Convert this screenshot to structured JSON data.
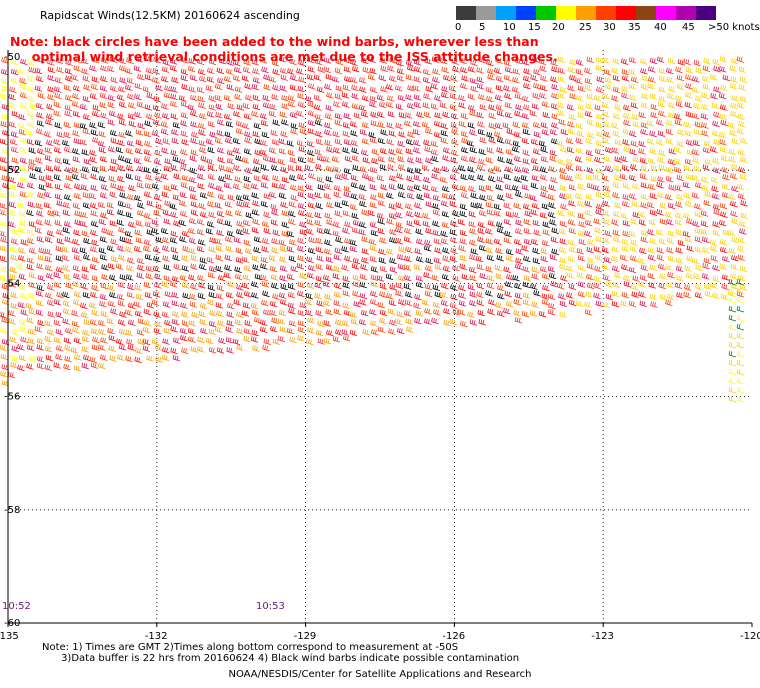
{
  "title": "Rapidscat Winds(12.5KM) 20160624 ascending",
  "note_red": [
    "Note: black circles have been added to the wind barbs, wherever less than",
    "     optimal wind retrieval conditions are met due to the ISS attitude changes."
  ],
  "colorbar": {
    "labels": [
      "0",
      "5",
      "10",
      "15",
      "20",
      "25",
      "30",
      "35",
      "40",
      "45",
      ">50 knots"
    ],
    "colors": [
      "#3c3c3c",
      "#9a9a9a",
      "#00a0ff",
      "#0040ff",
      "#00c800",
      "#ffff00",
      "#ffa000",
      "#ff4000",
      "#ff0000",
      "#8b4513",
      "#ff00ff",
      "#b000b0",
      "#4b0082"
    ]
  },
  "lat_labels": [
    "-50",
    "-52",
    "-54",
    "-56",
    "-58",
    "-60"
  ],
  "lon_labels": [
    "-135",
    "-132",
    "-129",
    "-126",
    "-123",
    "-120"
  ],
  "time_labels": [
    "10:52",
    "10:53"
  ],
  "bottom_note": [
    "Note: 1) Times are GMT 2)Times along bottom correspond to measurement at -50S",
    "      3)Data buffer is 22 hrs from 20160624 4) Black wind barbs indicate possible contamination"
  ],
  "credit": "NOAA/NESDIS/Center for Satellite Applications and Research"
}
